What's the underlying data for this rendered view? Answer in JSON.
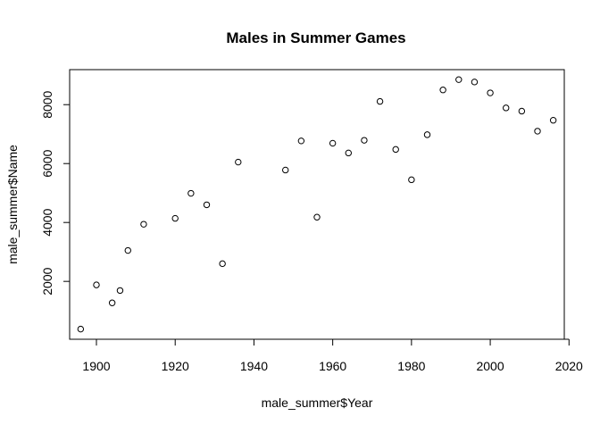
{
  "chart_data": {
    "type": "scatter",
    "title": "Males in Summer Games",
    "xlabel": "male_summer$Year",
    "ylabel": "male_summer$Name",
    "xlim": [
      1893.2,
      2018.8
    ],
    "ylim": [
      35,
      9189
    ],
    "x_ticks": [
      1900,
      1920,
      1940,
      1960,
      1980,
      2000,
      2020
    ],
    "x_tick_labels": [
      "1900",
      "1920",
      "1940",
      "1960",
      "1980",
      "2000",
      "2020"
    ],
    "y_ticks": [
      2000,
      4000,
      6000,
      8000
    ],
    "y_tick_labels": [
      "2000",
      "4000",
      "6000",
      "8000"
    ],
    "grid": false,
    "legend": "none",
    "point_style": "open-circle",
    "x": [
      1896,
      1900,
      1904,
      1906,
      1908,
      1912,
      1920,
      1924,
      1928,
      1932,
      1936,
      1948,
      1952,
      1956,
      1960,
      1964,
      1968,
      1972,
      1976,
      1980,
      1984,
      1988,
      1992,
      1996,
      2000,
      2004,
      2008,
      2012,
      2016
    ],
    "y": [
      380,
      1880,
      1270,
      1690,
      3050,
      3940,
      4140,
      4990,
      4600,
      2600,
      6050,
      5780,
      6770,
      4180,
      6690,
      6360,
      6790,
      8110,
      6480,
      5450,
      6980,
      8500,
      8850,
      8770,
      8400,
      7890,
      7780,
      7100,
      7470
    ]
  }
}
